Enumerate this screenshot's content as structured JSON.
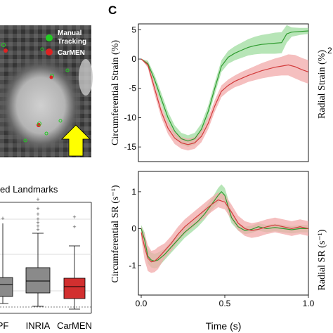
{
  "panel_label": "C",
  "legend": {
    "items": [
      {
        "label_lines": [
          "Manual",
          "Tracking"
        ],
        "color": "#22cc22"
      },
      {
        "label_lines": [
          "CarMEN"
        ],
        "color": "#dd2222"
      }
    ]
  },
  "boxplot_title_fragment": "ed Landmarks",
  "boxplot_categories": [
    "PF",
    "INRIA",
    "CarMEN"
  ],
  "colors": {
    "manual": "#2e9b2e",
    "manual_band": "#9fdc9f",
    "carmen": "#d23a3a",
    "carmen_band": "#f2a9a9",
    "box_gray": "#8a8a8a",
    "box_red": "#d22f2f",
    "arrow": "#ffff00"
  },
  "chart_data": [
    {
      "type": "line",
      "ylabel": "Circumferential Strain (%)",
      "ylim": [
        -17.5,
        6
      ],
      "xlim": [
        0,
        1
      ],
      "yticks": [
        "5",
        "0",
        "-5",
        "-10",
        "-15"
      ],
      "ytick_values": [
        5,
        0,
        -5,
        -10,
        -15
      ],
      "grid": false,
      "series": [
        {
          "key": "manual",
          "x": [
            0,
            0.04,
            0.08,
            0.12,
            0.16,
            0.2,
            0.24,
            0.28,
            0.32,
            0.36,
            0.4,
            0.44,
            0.48,
            0.52,
            0.56,
            0.6,
            0.64,
            0.68,
            0.72,
            0.76,
            0.8,
            0.84,
            0.87,
            0.9,
            0.95,
            1.0
          ],
          "y": [
            0,
            -0.8,
            -3.5,
            -6.8,
            -10.0,
            -12.3,
            -13.6,
            -14.0,
            -13.6,
            -12.0,
            -9.0,
            -5.0,
            -1.2,
            0.3,
            1.0,
            1.5,
            2.0,
            2.3,
            2.5,
            2.6,
            2.7,
            2.8,
            4.3,
            4.6,
            4.7,
            4.8
          ],
          "band": [
            0,
            0.5,
            0.8,
            1.0,
            1.0,
            1.0,
            1.0,
            1.0,
            1.0,
            1.0,
            1.0,
            1.0,
            1.0,
            1.1,
            1.2,
            1.3,
            1.4,
            1.5,
            1.6,
            1.7,
            1.8,
            1.8,
            1.5,
            0.8,
            0.6,
            0.5
          ]
        },
        {
          "key": "carmen",
          "x": [
            0,
            0.04,
            0.08,
            0.12,
            0.16,
            0.2,
            0.24,
            0.28,
            0.32,
            0.36,
            0.4,
            0.44,
            0.48,
            0.52,
            0.56,
            0.6,
            0.64,
            0.68,
            0.72,
            0.76,
            0.8,
            0.84,
            0.88,
            0.92,
            0.96,
            1.0
          ],
          "y": [
            0,
            -1.0,
            -5.0,
            -9.0,
            -11.8,
            -13.5,
            -14.3,
            -14.6,
            -14.3,
            -13.2,
            -11.0,
            -8.0,
            -5.5,
            -4.5,
            -3.8,
            -3.3,
            -2.8,
            -2.4,
            -2.0,
            -1.7,
            -1.4,
            -1.2,
            -1.0,
            -1.3,
            -1.8,
            -2.2
          ],
          "band": [
            0,
            0.5,
            1.0,
            1.0,
            1.0,
            1.0,
            1.0,
            1.0,
            1.0,
            1.0,
            1.0,
            1.0,
            1.0,
            1.0,
            1.0,
            1.1,
            1.1,
            1.2,
            1.3,
            1.4,
            1.5,
            1.6,
            1.8,
            2.0,
            2.0,
            2.0
          ]
        }
      ]
    },
    {
      "type": "line",
      "ylabel": "Circumferential SR (s⁻¹)",
      "xlabel": "Time (s)",
      "ylim": [
        -1.8,
        1.55
      ],
      "xlim": [
        0,
        1
      ],
      "yticks": [
        "1",
        "0",
        "-1"
      ],
      "ytick_values": [
        1,
        0,
        -1
      ],
      "xticks": [
        "0.0",
        "0.5",
        "1.0"
      ],
      "xtick_values": [
        0,
        0.5,
        1.0
      ],
      "grid": false,
      "series": [
        {
          "key": "manual",
          "x": [
            0,
            0.02,
            0.04,
            0.06,
            0.08,
            0.1,
            0.14,
            0.18,
            0.22,
            0.26,
            0.3,
            0.34,
            0.38,
            0.42,
            0.46,
            0.48,
            0.5,
            0.52,
            0.54,
            0.58,
            0.62,
            0.66,
            0.7,
            0.75,
            0.8,
            0.85,
            0.9,
            0.95,
            1.0
          ],
          "y": [
            0,
            -0.3,
            -0.75,
            -0.85,
            -0.88,
            -0.85,
            -0.7,
            -0.5,
            -0.3,
            -0.1,
            0.05,
            0.2,
            0.4,
            0.65,
            0.9,
            1.0,
            0.9,
            0.6,
            0.3,
            0.05,
            -0.05,
            -0.02,
            0.05,
            0.0,
            0.03,
            0.0,
            -0.03,
            0.0,
            0.0
          ],
          "band": [
            0.1,
            0.2,
            0.2,
            0.2,
            0.2,
            0.2,
            0.15,
            0.15,
            0.15,
            0.15,
            0.15,
            0.15,
            0.15,
            0.15,
            0.2,
            0.2,
            0.2,
            0.2,
            0.15,
            0.1,
            0.1,
            0.1,
            0.1,
            0.1,
            0.1,
            0.1,
            0.1,
            0.1,
            0.1
          ]
        },
        {
          "key": "carmen",
          "x": [
            0,
            0.02,
            0.04,
            0.06,
            0.08,
            0.1,
            0.14,
            0.18,
            0.22,
            0.26,
            0.3,
            0.34,
            0.38,
            0.42,
            0.46,
            0.5,
            0.54,
            0.58,
            0.62,
            0.66,
            0.7,
            0.75,
            0.8,
            0.85,
            0.9,
            0.95,
            1.0
          ],
          "y": [
            -0.1,
            -0.5,
            -0.8,
            -0.9,
            -0.88,
            -0.8,
            -0.6,
            -0.4,
            -0.15,
            0.05,
            0.2,
            0.35,
            0.5,
            0.65,
            0.78,
            0.72,
            0.45,
            0.15,
            0.0,
            -0.05,
            -0.02,
            0.05,
            0.1,
            0.05,
            0.0,
            0.05,
            0.0
          ],
          "band": [
            0.15,
            0.35,
            0.35,
            0.3,
            0.3,
            0.3,
            0.2,
            0.2,
            0.2,
            0.2,
            0.2,
            0.2,
            0.2,
            0.2,
            0.2,
            0.2,
            0.2,
            0.2,
            0.2,
            0.2,
            0.2,
            0.2,
            0.2,
            0.2,
            0.2,
            0.2,
            0.2
          ]
        }
      ]
    }
  ],
  "right_fragments": {
    "top_ylabel": "Radial Strain (%)",
    "top_tick": "2",
    "bottom_ylabel": "Radial SR (s⁻¹)"
  }
}
